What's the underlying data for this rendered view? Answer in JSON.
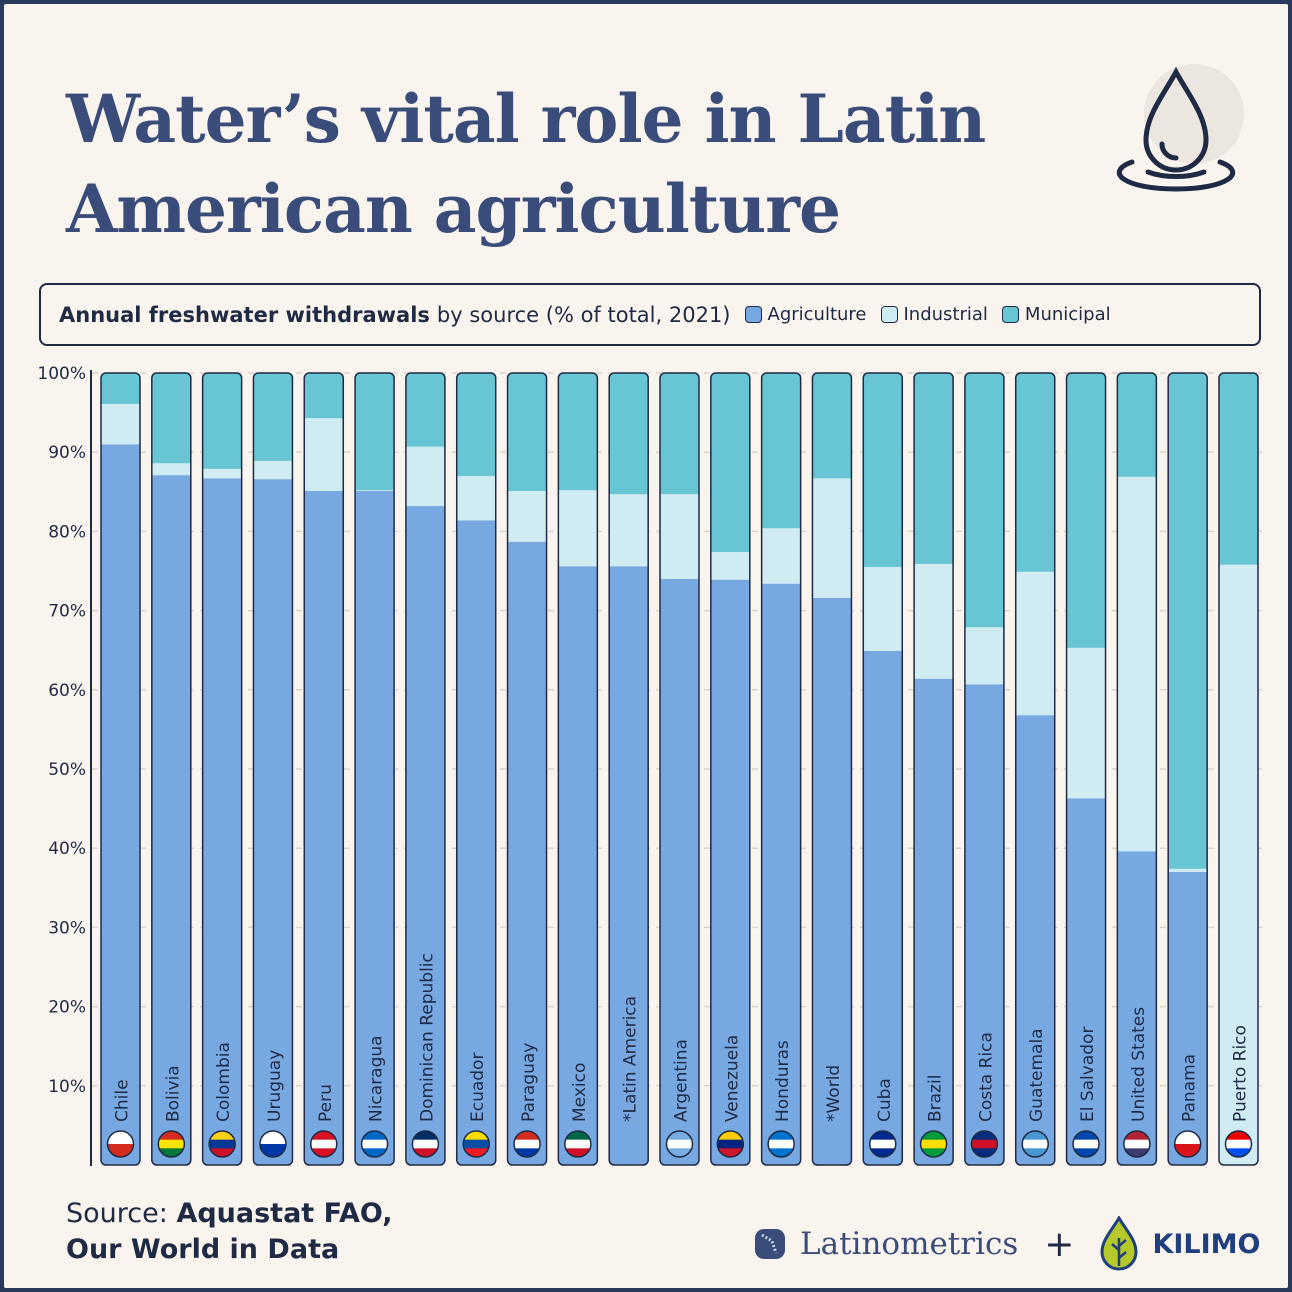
{
  "title": "Water’s vital role in Latin American agriculture",
  "legend": {
    "title_bold": "Annual freshwater withdrawals",
    "title_rest": "by source (% of total, 2021)",
    "items": [
      "Agriculture",
      "Industrial",
      "Municipal"
    ]
  },
  "colors": {
    "Agriculture": "#78a8e2",
    "Industrial": "#d0ecf3",
    "Municipal": "#68c5d3",
    "text": "#1f2a44",
    "title": "#3a4d7a"
  },
  "source": {
    "label": "Source:",
    "text1": "Aquastat FAO,",
    "text2": "Our World in Data"
  },
  "logos": {
    "latinometrics": "Latinometrics",
    "plus": "+",
    "kilimo": "KILIMO"
  },
  "chart_data": {
    "type": "bar",
    "stacked": true,
    "categories": [
      "Chile",
      "Bolivia",
      "Colombia",
      "Uruguay",
      "Peru",
      "Nicaragua",
      "Dominican Republic",
      "Ecuador",
      "Paraguay",
      "Mexico",
      "*Latin America",
      "Argentina",
      "Venezuela",
      "Honduras",
      "*World",
      "Cuba",
      "Brazil",
      "Costa Rica",
      "Guatemala",
      "El Salvador",
      "United States",
      "Panama",
      "Puerto Rico"
    ],
    "series": [
      {
        "name": "Agriculture",
        "values": [
          91.0,
          87.1,
          86.7,
          86.6,
          85.1,
          85.1,
          83.2,
          81.4,
          78.7,
          75.6,
          75.6,
          74.0,
          73.9,
          73.4,
          71.6,
          64.9,
          61.4,
          60.7,
          56.8,
          46.3,
          39.6,
          37.0,
          0
        ]
      },
      {
        "name": "Industrial",
        "values": [
          5.1,
          1.5,
          1.2,
          2.3,
          9.2,
          0.1,
          7.5,
          5.6,
          6.4,
          9.6,
          9.1,
          10.7,
          3.5,
          7.0,
          15.1,
          10.6,
          14.5,
          7.2,
          18.1,
          19.0,
          47.3,
          0.4,
          75.8
        ]
      },
      {
        "name": "Municipal",
        "values": [
          3.9,
          11.4,
          12.1,
          11.1,
          5.7,
          14.8,
          9.3,
          13.0,
          14.9,
          14.8,
          15.3,
          15.3,
          22.6,
          19.6,
          13.3,
          24.5,
          24.1,
          32.1,
          25.1,
          34.7,
          13.1,
          62.6,
          24.2
        ]
      }
    ],
    "yticks": [
      "10%",
      "20%",
      "30%",
      "40%",
      "50%",
      "60%",
      "70%",
      "80%",
      "90%",
      "100%"
    ],
    "ylim": [
      0,
      100
    ],
    "grid": true,
    "legend_position": "top"
  },
  "flags": [
    [
      "#ffffff",
      "#d52b1e"
    ],
    [
      "#d52b1e",
      "#f9e300",
      "#007934"
    ],
    [
      "#fcd116",
      "#003893",
      "#ce1126"
    ],
    [
      "#ffffff",
      "#0038a8"
    ],
    [
      "#d91023",
      "#ffffff",
      "#d91023"
    ],
    [
      "#0067c6",
      "#ffffff",
      "#0067c6"
    ],
    [
      "#002d62",
      "#ffffff",
      "#ce1126"
    ],
    [
      "#ffdd00",
      "#034ea2",
      "#ed1c24"
    ],
    [
      "#d52b1e",
      "#ffffff",
      "#0038a8"
    ],
    [
      "#006847",
      "#ffffff",
      "#ce1126"
    ],
    [
      "#ffffff"
    ],
    [
      "#74acdf",
      "#ffffff",
      "#74acdf"
    ],
    [
      "#ffcc00",
      "#00247d",
      "#cf142b"
    ],
    [
      "#0073cf",
      "#ffffff",
      "#0073cf"
    ],
    [
      "#ffffff"
    ],
    [
      "#002a8f",
      "#ffffff",
      "#002a8f"
    ],
    [
      "#009c3b",
      "#ffdf00",
      "#009c3b"
    ],
    [
      "#002b7f",
      "#ce1126",
      "#002b7f"
    ],
    [
      "#4997d0",
      "#ffffff",
      "#4997d0"
    ],
    [
      "#0047ab",
      "#ffffff",
      "#0047ab"
    ],
    [
      "#b22234",
      "#ffffff",
      "#3c3b6e"
    ],
    [
      "#ffffff",
      "#da121a"
    ],
    [
      "#ed0000",
      "#ffffff",
      "#0050f0"
    ]
  ]
}
